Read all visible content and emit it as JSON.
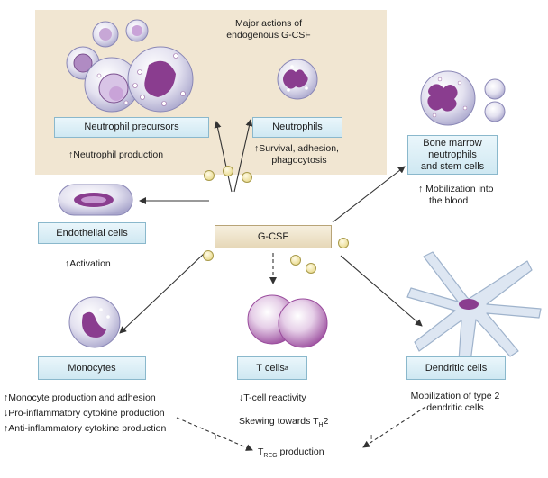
{
  "header_title_line1": "Major actions of",
  "header_title_line2": "endogenous G-CSF",
  "center_label": "G-CSF",
  "targets": {
    "neutrophil_precursors": {
      "label": "Neutrophil precursors",
      "effect": "↑Neutrophil production"
    },
    "neutrophils": {
      "label": "Neutrophils",
      "effect_line1": "↑Survival, adhesion,",
      "effect_line2": "phagocytosis"
    },
    "bone_marrow": {
      "label_line1": "Bone marrow",
      "label_line2": "neutrophils",
      "label_line3": "and stem cells",
      "effect_line1": "↑ Mobilization into",
      "effect_line2": "the blood"
    },
    "endothelial": {
      "label": "Endothelial cells",
      "effect": "↑Activation"
    },
    "monocytes": {
      "label": "Monocytes",
      "effect_line1": "↑Monocyte production and adhesion",
      "effect_line2": "↓Pro-inflammatory cytokine production",
      "effect_line3": "↑Anti-inflammatory cytokine production"
    },
    "t_cells": {
      "label": "T cells",
      "label_sup": "a",
      "effect_line1": "↓T-cell reactivity",
      "effect_line2_main": "Skewing towards T",
      "effect_line2_sub": "H",
      "effect_line2_tail": "2"
    },
    "dendritic": {
      "label": "Dendritic cells",
      "effect_line1": "Mobilization of type 2",
      "effect_line2": "dendritic cells"
    }
  },
  "treg": {
    "main": "T",
    "sub": "REG",
    "tail": " production"
  },
  "plus_left": "+",
  "plus_right": "+",
  "colors": {
    "beige_panel": "#f1e6d2",
    "box_fill": "#d8edf5",
    "box_border": "#8ab8cc",
    "cell_lilac": "#dcd8ec",
    "nucleus_purple": "#8a3d8f",
    "granule_yellow": "#f4eab0"
  }
}
